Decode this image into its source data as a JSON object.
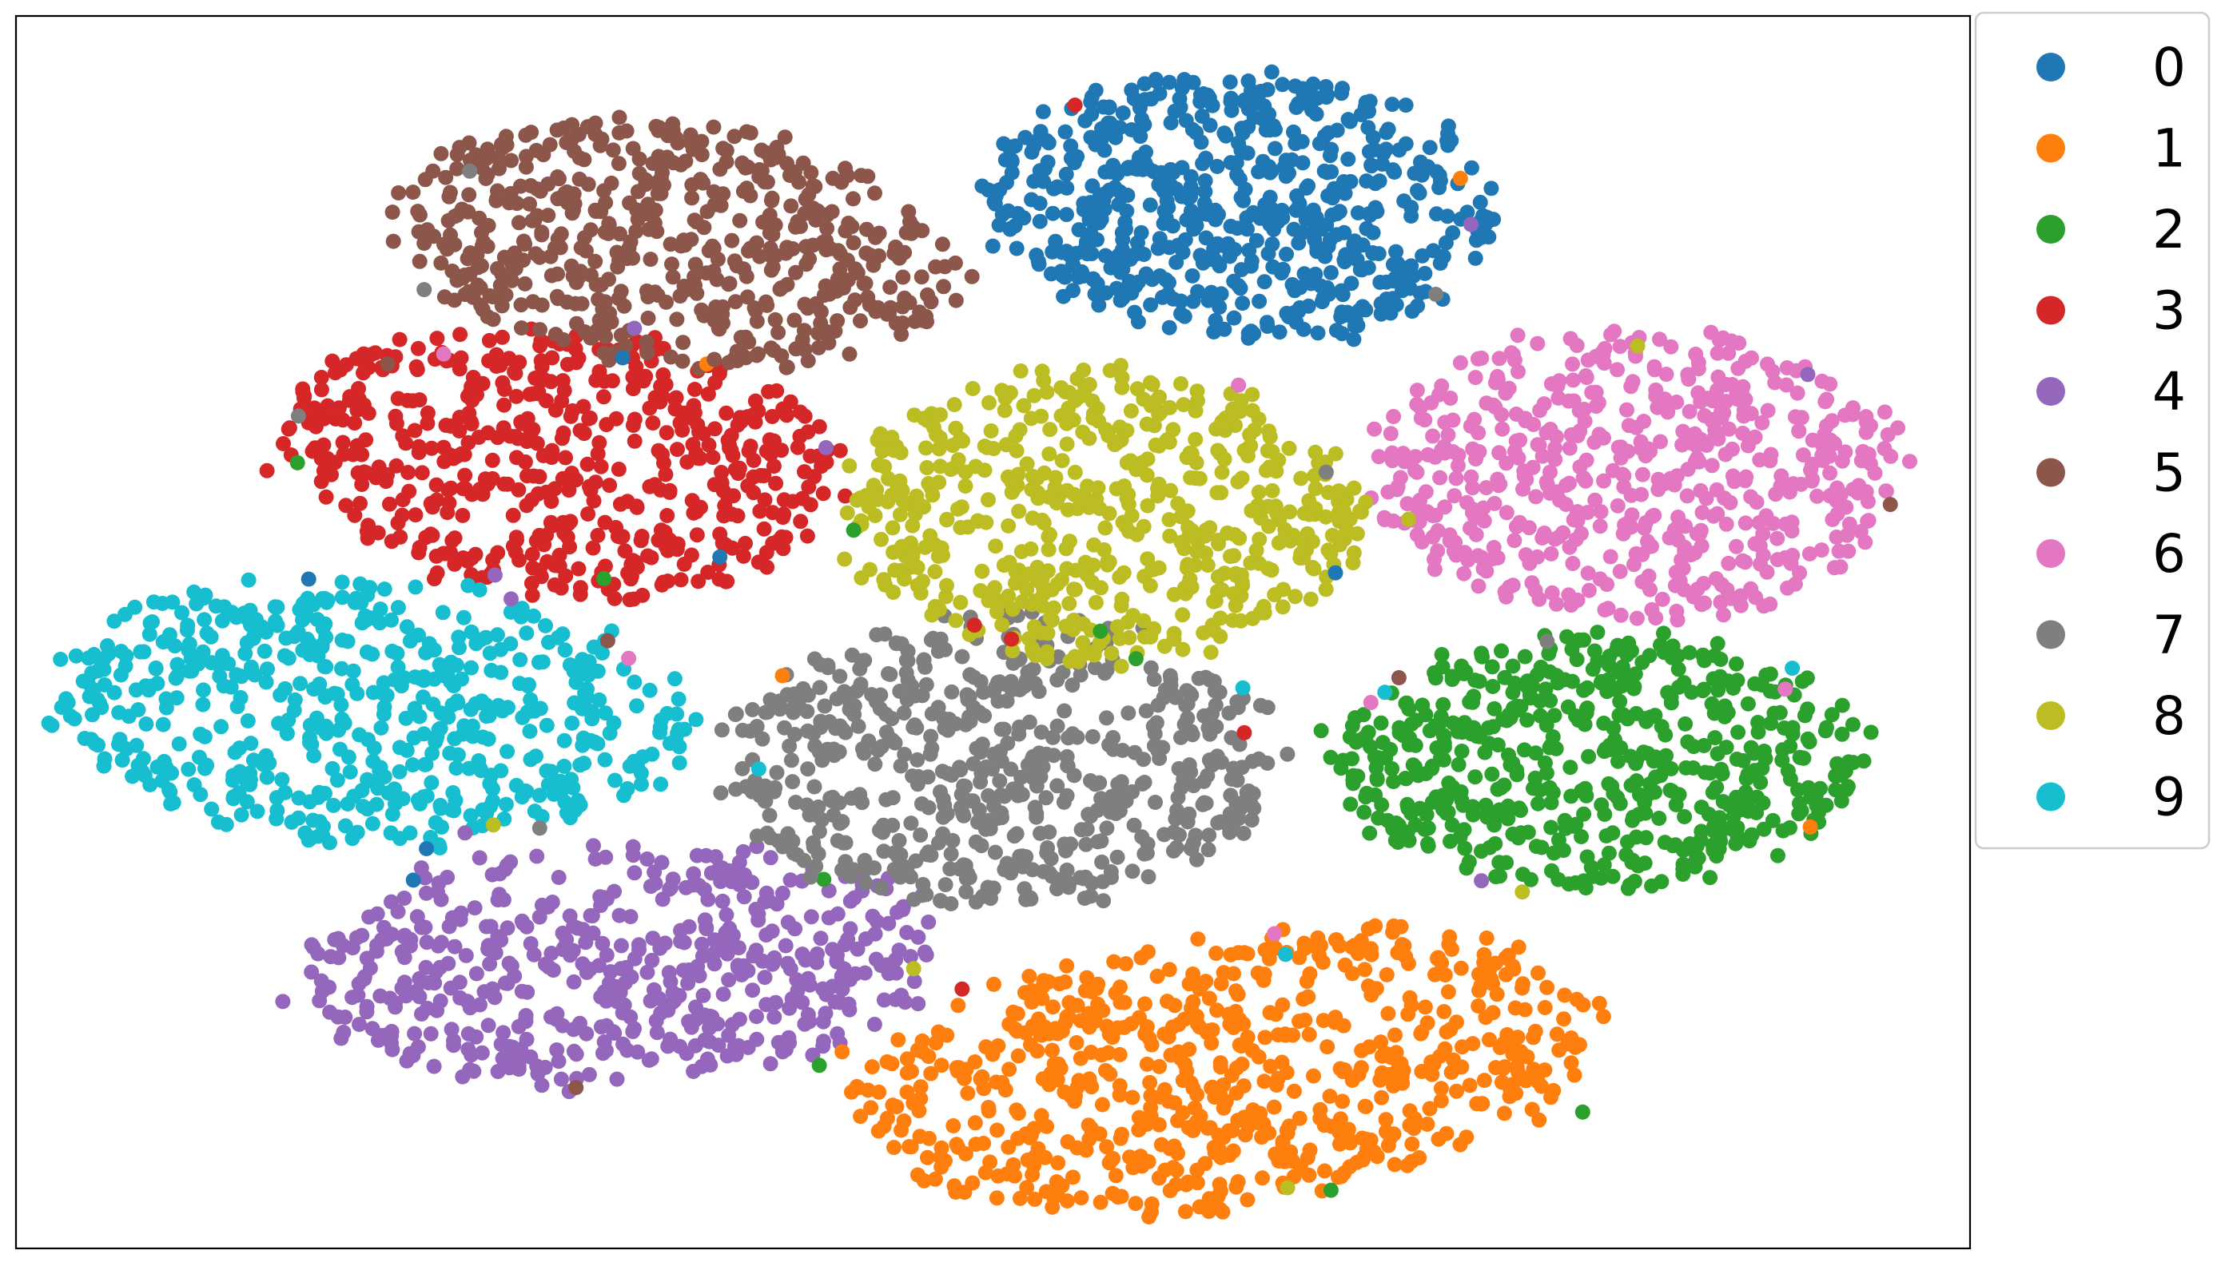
{
  "chart_data": {
    "type": "scatter",
    "title": "",
    "xlabel": "",
    "ylabel": "",
    "xlim": [
      0,
      100
    ],
    "ylim": [
      0,
      100
    ],
    "axis_ticks": false,
    "grid": false,
    "legend": {
      "placement": "outside-right-top",
      "entries": [
        "0",
        "1",
        "2",
        "3",
        "4",
        "5",
        "6",
        "7",
        "8",
        "9"
      ]
    },
    "series": [
      {
        "label": "0",
        "color": "#1f77b4",
        "center": [
          62.7,
          84.5
        ],
        "spread": [
          13.5,
          11.0
        ],
        "tilt": -14,
        "count": 600
      },
      {
        "label": "1",
        "color": "#ff7f0e",
        "center": [
          62.0,
          14.5
        ],
        "spread": [
          20.0,
          11.0
        ],
        "tilt": 15,
        "count": 680
      },
      {
        "label": "2",
        "color": "#2ca02c",
        "center": [
          80.8,
          39.5
        ],
        "spread": [
          14.0,
          10.5
        ],
        "tilt": 0,
        "count": 560
      },
      {
        "label": "3",
        "color": "#d62728",
        "center": [
          27.5,
          64.0
        ],
        "spread": [
          15.0,
          11.0
        ],
        "tilt": -14,
        "count": 560
      },
      {
        "label": "4",
        "color": "#9467bd",
        "center": [
          31.0,
          23.0
        ],
        "spread": [
          17.0,
          10.0
        ],
        "tilt": 7,
        "count": 520
      },
      {
        "label": "5",
        "color": "#8c564b",
        "center": [
          34.0,
          81.5
        ],
        "spread": [
          15.0,
          10.0
        ],
        "tilt": -15,
        "count": 540
      },
      {
        "label": "6",
        "color": "#e377c2",
        "center": [
          83.0,
          63.0
        ],
        "spread": [
          14.0,
          12.0
        ],
        "tilt": -5,
        "count": 560
      },
      {
        "label": "7",
        "color": "#7f7f7f",
        "center": [
          50.5,
          39.5
        ],
        "spread": [
          14.5,
          12.0
        ],
        "tilt": 0,
        "count": 600
      },
      {
        "label": "8",
        "color": "#bcbd22",
        "center": [
          55.5,
          59.5
        ],
        "spread": [
          13.5,
          12.0
        ],
        "tilt": 2,
        "count": 560
      },
      {
        "label": "9",
        "color": "#17becf",
        "center": [
          18.0,
          43.5
        ],
        "spread": [
          16.5,
          11.0
        ],
        "tilt": -8,
        "count": 560
      }
    ]
  }
}
